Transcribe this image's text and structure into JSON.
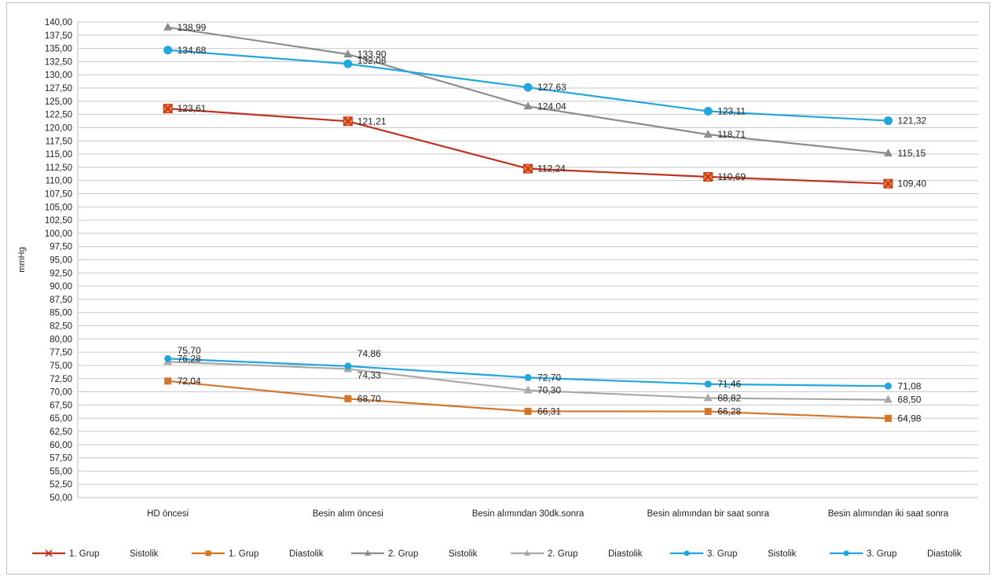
{
  "chart_data": {
    "type": "line",
    "ylabel": "mmHg",
    "ylim": [
      50,
      140
    ],
    "ystep": 2.5,
    "categories": [
      "HD öncesi",
      "Besin alım öncesi",
      "Besin alımından 30dk.sonra",
      "Besin alımından bir saat sonra",
      "Besin alımından iki saat sonra"
    ],
    "y_tick_labels": [
      "50,00",
      "52,50",
      "55,00",
      "57,50",
      "60,00",
      "62,50",
      "65,00",
      "67,50",
      "70,00",
      "72,50",
      "75,00",
      "77,50",
      "80,00",
      "82,50",
      "85,00",
      "87,50",
      "90,00",
      "92,50",
      "95,00",
      "97,50",
      "100,00",
      "102,50",
      "105,00",
      "107,50",
      "110,00",
      "112,50",
      "115,00",
      "117,50",
      "120,00",
      "122,50",
      "125,00",
      "127,50",
      "130,00",
      "132,50",
      "135,00",
      "137,50",
      "140,00"
    ],
    "grid": true,
    "legend_position": "bottom",
    "series": [
      {
        "group": "1. Grup",
        "kind": "Sistolik",
        "color": "#c0311f",
        "marker": "x-square",
        "values": [
          123.61,
          121.21,
          112.24,
          110.69,
          109.4
        ],
        "labels": [
          "123,61",
          "121,21",
          "112,24",
          "110,69",
          "109,40"
        ]
      },
      {
        "group": "1. Grup",
        "kind": "Diastolik",
        "color": "#d2762b",
        "marker": "square",
        "values": [
          72.04,
          68.7,
          66.31,
          66.28,
          64.98
        ],
        "labels": [
          "72,04",
          "68,70",
          "66,31",
          "66,28",
          "64,98"
        ]
      },
      {
        "group": "2. Grup",
        "kind": "Sistolik",
        "color": "#8c8c8c",
        "marker": "triangle",
        "values": [
          138.99,
          133.9,
          124.04,
          118.71,
          115.15
        ],
        "labels": [
          "138,99",
          "133,90",
          "124,04",
          "118,71",
          "115,15"
        ]
      },
      {
        "group": "2. Grup",
        "kind": "Diastolik",
        "color": "#a9a9a9",
        "marker": "triangle",
        "values": [
          75.7,
          74.33,
          70.3,
          68.82,
          68.5
        ],
        "labels": [
          "75,70",
          "74,33",
          "70,30",
          "68,82",
          "68,50"
        ]
      },
      {
        "group": "3. Grup",
        "kind": "Sistolik",
        "color": "#21a6dd",
        "marker": "circle-large",
        "values": [
          134.68,
          132.08,
          127.63,
          123.11,
          121.32
        ],
        "labels": [
          "134,68",
          "132,08",
          "127,63",
          "123,11",
          "121,32"
        ]
      },
      {
        "group": "3. Grup",
        "kind": "Diastolik",
        "color": "#21a6dd",
        "marker": "circle-small",
        "values": [
          76.28,
          74.86,
          72.7,
          71.46,
          71.08
        ],
        "labels": [
          "76,28",
          "74,86",
          "72,70",
          "71,46",
          "71,08"
        ]
      }
    ]
  }
}
